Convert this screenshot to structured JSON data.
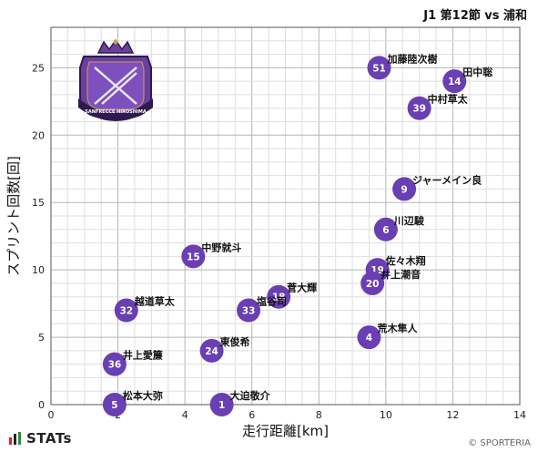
{
  "header": {
    "title": "J1 第12節 vs 浦和"
  },
  "footer": {
    "brand": "STATs",
    "copyright": "© SPORTERIA"
  },
  "logo": {
    "label": "SANFRECCE HIROSHIMA",
    "colors": {
      "primary": "#6b3fa0",
      "dark": "#2f1a4f",
      "gold": "#c9a34a",
      "silver": "#e5e5e5"
    }
  },
  "colors": {
    "point": "#6a3fb3",
    "grid_major": "#b5b5b5",
    "grid_minor": "#dedede",
    "brand_red": "#d9262b",
    "brand_green": "#2e8b3a"
  },
  "chart_data": {
    "type": "scatter",
    "xlabel": "走行距離[km]",
    "ylabel": "スプリント回数[回]",
    "xlim": [
      0,
      14
    ],
    "ylim": [
      0,
      28
    ],
    "xticks": [
      0,
      2,
      4,
      6,
      8,
      10,
      12,
      14
    ],
    "yticks": [
      0,
      5,
      10,
      15,
      20,
      25
    ],
    "grid": true,
    "points": [
      {
        "number": "51",
        "name": "加藤陸次樹",
        "x": 9.8,
        "y": 25
      },
      {
        "number": "14",
        "name": "田中聡",
        "x": 12.05,
        "y": 24
      },
      {
        "number": "39",
        "name": "中村草太",
        "x": 11.0,
        "y": 22
      },
      {
        "number": "9",
        "name": "ジャーメイン良",
        "x": 10.55,
        "y": 16
      },
      {
        "number": "6",
        "name": "川辺駿",
        "x": 10.0,
        "y": 13
      },
      {
        "number": "15",
        "name": "中野就斗",
        "x": 4.25,
        "y": 11
      },
      {
        "number": "19",
        "name": "佐々木翔",
        "x": 9.75,
        "y": 10
      },
      {
        "number": "20",
        "name": "井上潮音",
        "x": 9.6,
        "y": 9
      },
      {
        "number": "18",
        "name": "菅大輝",
        "x": 6.8,
        "y": 8
      },
      {
        "number": "32",
        "name": "越道草太",
        "x": 2.25,
        "y": 7
      },
      {
        "number": "33",
        "name": "塩谷司",
        "x": 5.9,
        "y": 7
      },
      {
        "number": "4",
        "name": "荒木隼人",
        "x": 9.5,
        "y": 5
      },
      {
        "number": "24",
        "name": "東俊希",
        "x": 4.8,
        "y": 4
      },
      {
        "number": "36",
        "name": "井上愛簾",
        "x": 1.9,
        "y": 3
      },
      {
        "number": "5",
        "name": "松本大弥",
        "x": 1.9,
        "y": 0
      },
      {
        "number": "1",
        "name": "大迫敬介",
        "x": 5.1,
        "y": 0
      }
    ]
  }
}
